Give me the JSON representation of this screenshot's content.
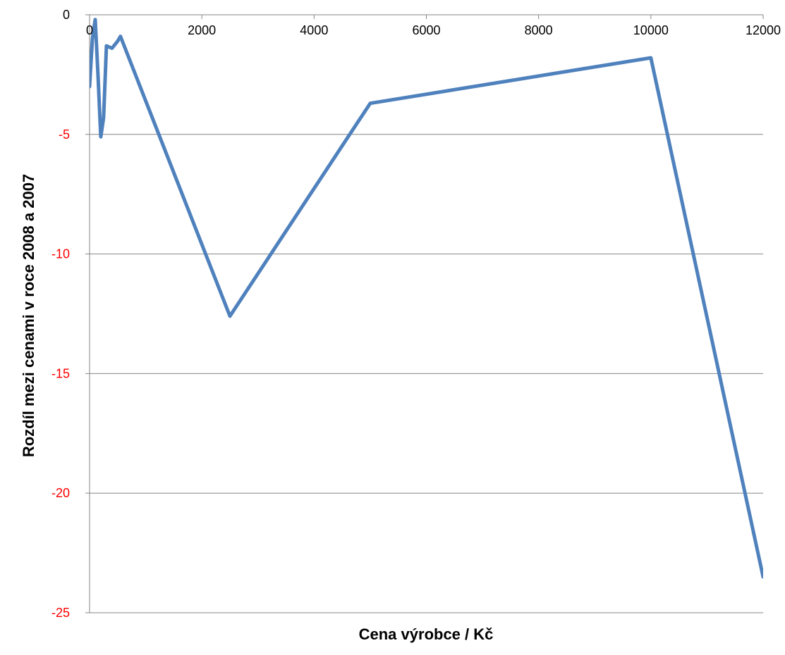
{
  "chart_data": {
    "type": "line",
    "title": "",
    "xlabel": "Cena výrobce / Kč",
    "ylabel": "Rozdíl mezi cenami v roce 2008 a 2007",
    "xlim": [
      0,
      12000
    ],
    "ylim": [
      -25,
      0
    ],
    "x_ticks": [
      0,
      2000,
      4000,
      6000,
      8000,
      10000,
      12000
    ],
    "y_ticks": [
      0,
      -5,
      -10,
      -15,
      -20,
      -25
    ],
    "x_tick_labels": [
      "0",
      "2000",
      "4000",
      "6000",
      "8000",
      "10000",
      "12000"
    ],
    "y_tick_labels": [
      "0",
      "-5",
      "-10",
      "-15",
      "-20",
      "-25"
    ],
    "grid": "horizontal",
    "legend": "none",
    "colors": {
      "line": "#4f81bd",
      "grid": "#868686",
      "negative_tick": "#ff0000",
      "zero_tick": "#000000"
    },
    "series": [
      {
        "values": [
          [
            0,
            -3.0
          ],
          [
            50,
            -1.0
          ],
          [
            100,
            -0.2
          ],
          [
            150,
            -2.5
          ],
          [
            200,
            -5.1
          ],
          [
            250,
            -4.3
          ],
          [
            300,
            -1.3
          ],
          [
            400,
            -1.4
          ],
          [
            500,
            -1.1
          ],
          [
            550,
            -0.9
          ],
          [
            1000,
            -3.6
          ],
          [
            2500,
            -12.6
          ],
          [
            5000,
            -3.7
          ],
          [
            10000,
            -1.8
          ],
          [
            12000,
            -23.5
          ]
        ]
      }
    ]
  }
}
